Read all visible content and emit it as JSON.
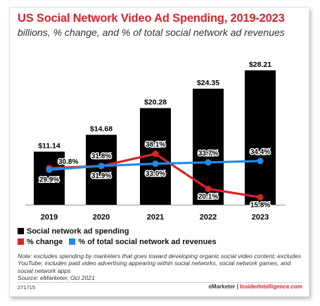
{
  "chart_data": {
    "type": "bar",
    "title": "US Social Network Video Ad Spending, 2019-2023",
    "subtitle": "billions, % change, and % of total social network ad revenues",
    "categories": [
      "2019",
      "2020",
      "2021",
      "2022",
      "2023"
    ],
    "series": [
      {
        "name": "Social network ad spending",
        "kind": "bar",
        "color": "#000000",
        "values": [
          11.14,
          14.68,
          20.28,
          24.35,
          28.21
        ],
        "labels": [
          "$11.14",
          "$14.68",
          "$20.28",
          "$24.35",
          "$28.21"
        ]
      },
      {
        "name": "% change",
        "kind": "line",
        "color": "#d8232a",
        "values": [
          30.8,
          31.8,
          38.1,
          20.1,
          15.8
        ],
        "labels": [
          "30.8%",
          "31.8%",
          "38.1%",
          "20.1%",
          "15.8%"
        ]
      },
      {
        "name": "% of total social network ad revenues",
        "kind": "line",
        "color": "#1f8ceb",
        "values": [
          29.9,
          31.9,
          33.0,
          33.7,
          34.4
        ],
        "labels": [
          "29.9%",
          "31.9%",
          "33.0%",
          "33.7%",
          "34.4%"
        ]
      }
    ]
  },
  "note": "Note: excludes spending by marketers that goes toward developing organic social video content; excludes YouTube; includes paid video advertising appearing within social networks, social network games, and social network apps",
  "source": "Source: eMarketer, Oct 2021",
  "chart_id": "271715",
  "brand": {
    "left": "eMarketer",
    "separator": " | ",
    "right": "InsiderIntelligence.com"
  }
}
